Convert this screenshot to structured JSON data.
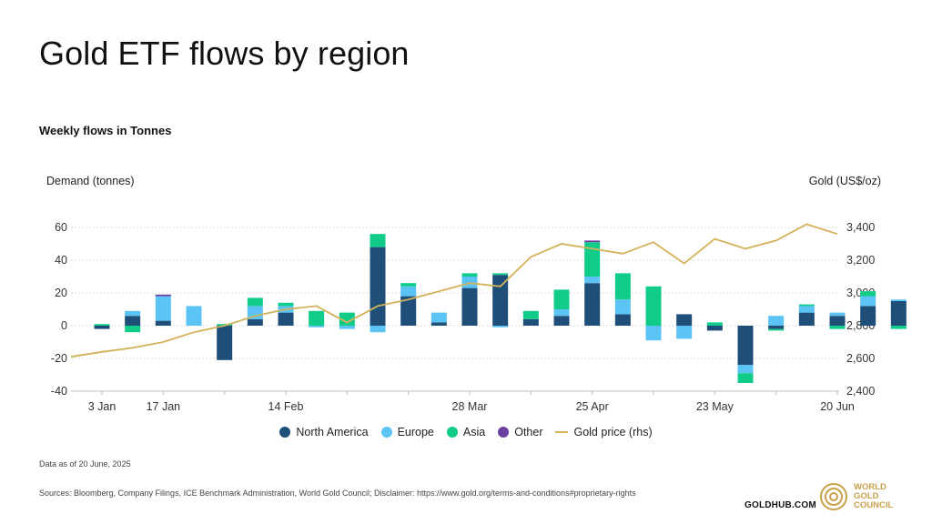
{
  "header": {
    "title": "Gold ETF flows by region",
    "subtitle": "Weekly flows in Tonnes"
  },
  "axes": {
    "left_title": "Demand (tonnes)",
    "right_title": "Gold (US$/oz)"
  },
  "legend": [
    {
      "label": "North America",
      "color": "#1f4e79",
      "kind": "dot"
    },
    {
      "label": "Europe",
      "color": "#5cc3f5",
      "kind": "dot"
    },
    {
      "label": "Asia",
      "color": "#11cc88",
      "kind": "dot"
    },
    {
      "label": "Other",
      "color": "#6b3fa0",
      "kind": "dot"
    },
    {
      "label": "Gold price (rhs)",
      "color": "#d4b25a",
      "kind": "line"
    }
  ],
  "footer": {
    "note": "Data as of 20 June, 2025",
    "sources": "Sources: Bloomberg, Company Filings, ICE Benchmark Administration, World Gold Council; Disclaimer: https://www.gold.org/terms-and-conditions#proprietary-rights",
    "goldhub": "GOLDHUB.COM",
    "wgc_line1": "WORLD",
    "wgc_line2": "GOLD",
    "wgc_line3": "COUNCIL"
  },
  "chart_data": {
    "type": "bar",
    "stacked": true,
    "x_tick_labels": [
      "3 Jan",
      "17 Jan",
      "14 Feb",
      "28 Mar",
      "25 Apr",
      "23 May",
      "20 Jun"
    ],
    "x_tick_indices": [
      0,
      2,
      6,
      12,
      16,
      20,
      24
    ],
    "y_left": {
      "ticks": [
        60,
        40,
        20,
        0,
        -20,
        -40
      ],
      "ylim": [
        -40,
        65
      ]
    },
    "y_right": {
      "ticks": [
        3400,
        3200,
        3000,
        2800,
        2600,
        2400
      ],
      "ylim": [
        2400,
        3500
      ],
      "tick_labels": [
        "3,400",
        "3,200",
        "3,000",
        "2,800",
        "2,600",
        "2,400"
      ]
    },
    "grid": true,
    "series": [
      {
        "name": "North America",
        "color": "#1f4e79",
        "values": [
          -2,
          6,
          3,
          0,
          -21,
          4,
          8,
          0,
          0,
          48,
          18,
          2,
          23,
          31,
          4,
          6,
          26,
          7,
          0,
          7,
          -3,
          -24,
          -2,
          8,
          6,
          12,
          15
        ]
      },
      {
        "name": "Europe",
        "color": "#5cc3f5",
        "values": [
          0,
          3,
          15,
          12,
          0,
          8,
          4,
          -1,
          -2,
          -4,
          6,
          6,
          7,
          -1,
          0,
          4,
          4,
          9,
          -9,
          -8,
          0,
          -5,
          6,
          4,
          2,
          6,
          1
        ]
      },
      {
        "name": "Asia",
        "color": "#11cc88",
        "values": [
          1,
          -4,
          0,
          0,
          1,
          5,
          2,
          9,
          8,
          8,
          2,
          0,
          2,
          1,
          5,
          12,
          21,
          16,
          24,
          0,
          2,
          -6,
          -1,
          1,
          -2,
          3,
          -2
        ]
      },
      {
        "name": "Other",
        "color": "#6b3fa0",
        "values": [
          0,
          0,
          1,
          0,
          0,
          0,
          0,
          0,
          0,
          0,
          0,
          0,
          0,
          0,
          0,
          0,
          1,
          0,
          0,
          0,
          0,
          0,
          0,
          0,
          0,
          0,
          0
        ]
      }
    ],
    "line_series": {
      "name": "Gold price (rhs)",
      "color": "#d4b25a",
      "axis": "right",
      "points": [
        {
          "i": -2,
          "v": 2610
        },
        {
          "i": 0,
          "v": 2640
        },
        {
          "i": 1,
          "v": 2665
        },
        {
          "i": 2,
          "v": 2700
        },
        {
          "i": 3,
          "v": 2760
        },
        {
          "i": 4,
          "v": 2800
        },
        {
          "i": 5,
          "v": 2860
        },
        {
          "i": 6,
          "v": 2900
        },
        {
          "i": 7,
          "v": 2920
        },
        {
          "i": 8,
          "v": 2820
        },
        {
          "i": 9,
          "v": 2920
        },
        {
          "i": 10,
          "v": 2960
        },
        {
          "i": 11,
          "v": 3010
        },
        {
          "i": 12,
          "v": 3060
        },
        {
          "i": 13,
          "v": 3040
        },
        {
          "i": 14,
          "v": 3220
        },
        {
          "i": 15,
          "v": 3300
        },
        {
          "i": 16,
          "v": 3270
        },
        {
          "i": 17,
          "v": 3240
        },
        {
          "i": 18,
          "v": 3310
        },
        {
          "i": 19,
          "v": 3180
        },
        {
          "i": 20,
          "v": 3330
        },
        {
          "i": 21,
          "v": 3270
        },
        {
          "i": 22,
          "v": 3320
        },
        {
          "i": 23,
          "v": 3420
        },
        {
          "i": 24,
          "v": 3360
        }
      ]
    }
  }
}
